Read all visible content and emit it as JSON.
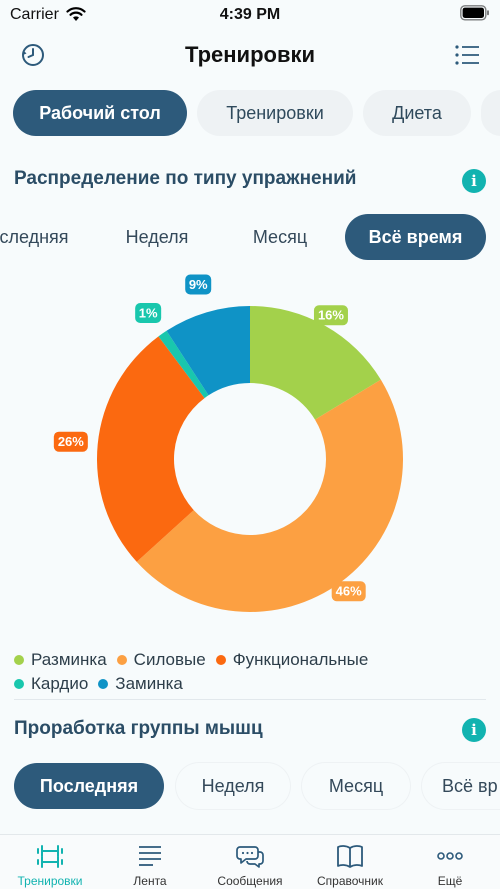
{
  "status": {
    "carrier": "Carrier",
    "time": "4:39 PM"
  },
  "nav": {
    "title": "Тренировки",
    "left_icon": "history-icon",
    "right_icon": "list-icon"
  },
  "tabs": [
    {
      "label": "Рабочий стол",
      "active": true
    },
    {
      "label": "Тренировки",
      "active": false
    },
    {
      "label": "Диета",
      "active": false
    }
  ],
  "section1": {
    "title": "Распределение по типу упражнений",
    "periods": [
      {
        "label": "следняя",
        "active": false
      },
      {
        "label": "Неделя",
        "active": false
      },
      {
        "label": "Месяц",
        "active": false
      },
      {
        "label": "Всё время",
        "active": true
      }
    ]
  },
  "chart_data": {
    "type": "pie",
    "donut": true,
    "slices": [
      {
        "name": "Разминка",
        "value": 16,
        "label": "16%",
        "color": "#a3d14b"
      },
      {
        "name": "Силовые",
        "value": 46,
        "label": "46%",
        "color": "#fca042"
      },
      {
        "name": "Функциональные",
        "value": 26,
        "label": "26%",
        "color": "#fb6910"
      },
      {
        "name": "Кардио",
        "value": 1,
        "label": "1%",
        "color": "#19c7ad"
      },
      {
        "name": "Заминка",
        "value": 9,
        "label": "9%",
        "color": "#0f93c6"
      }
    ],
    "legend": [
      "Разминка",
      "Силовые",
      "Функциональные",
      "Кардио",
      "Заминка"
    ]
  },
  "section2": {
    "title": "Проработка группы мышц",
    "periods": [
      {
        "label": "Последняя",
        "active": true
      },
      {
        "label": "Неделя",
        "active": false
      },
      {
        "label": "Месяц",
        "active": false
      },
      {
        "label": "Всё вр",
        "active": false
      }
    ]
  },
  "bottom_nav": [
    {
      "label": "Тренировки",
      "icon": "dumbbell-icon",
      "active": true
    },
    {
      "label": "Лента",
      "icon": "feed-icon",
      "active": false
    },
    {
      "label": "Сообщения",
      "icon": "chat-icon",
      "active": false
    },
    {
      "label": "Справочник",
      "icon": "book-icon",
      "active": false
    },
    {
      "label": "Ещё",
      "icon": "more-icon",
      "active": false
    }
  ]
}
